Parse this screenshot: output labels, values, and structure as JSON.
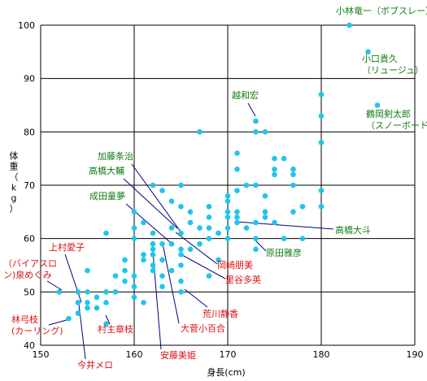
{
  "chart_data": {
    "type": "scatter",
    "title": "",
    "xlabel": "身長(cm)",
    "ylabel": "体重（kg）",
    "xlim": [
      150,
      190
    ],
    "ylim": [
      40,
      100
    ],
    "x_ticks": [
      150,
      160,
      170,
      180,
      190
    ],
    "y_ticks": [
      40,
      50,
      60,
      70,
      80,
      90,
      100
    ],
    "grid": true,
    "point_color": "#1fc5ec",
    "green_label_color": "#127c12",
    "red_label_color": "#dd1111",
    "points": [
      {
        "x": 183,
        "y": 100
      },
      {
        "x": 185,
        "y": 95
      },
      {
        "x": 186,
        "y": 85
      },
      {
        "x": 173,
        "y": 82
      },
      {
        "x": 173,
        "y": 80
      },
      {
        "x": 174,
        "y": 80
      },
      {
        "x": 167,
        "y": 80
      },
      {
        "x": 180,
        "y": 87
      },
      {
        "x": 180,
        "y": 83
      },
      {
        "x": 180,
        "y": 78
      },
      {
        "x": 180,
        "y": 69
      },
      {
        "x": 180,
        "y": 66
      },
      {
        "x": 171,
        "y": 76
      },
      {
        "x": 171,
        "y": 73
      },
      {
        "x": 171,
        "y": 69
      },
      {
        "x": 175,
        "y": 75
      },
      {
        "x": 175,
        "y": 73
      },
      {
        "x": 175,
        "y": 72
      },
      {
        "x": 176,
        "y": 75
      },
      {
        "x": 177,
        "y": 73
      },
      {
        "x": 177,
        "y": 72
      },
      {
        "x": 177,
        "y": 70
      },
      {
        "x": 173,
        "y": 70
      },
      {
        "x": 172,
        "y": 70
      },
      {
        "x": 174,
        "y": 68
      },
      {
        "x": 170,
        "y": 68
      },
      {
        "x": 170,
        "y": 67
      },
      {
        "x": 170,
        "y": 65
      },
      {
        "x": 170,
        "y": 64
      },
      {
        "x": 170,
        "y": 62
      },
      {
        "x": 170,
        "y": 60
      },
      {
        "x": 168,
        "y": 66
      },
      {
        "x": 168,
        "y": 64
      },
      {
        "x": 168,
        "y": 62
      },
      {
        "x": 169,
        "y": 61
      },
      {
        "x": 168,
        "y": 60
      },
      {
        "x": 171,
        "y": 65
      },
      {
        "x": 171,
        "y": 64
      },
      {
        "x": 171,
        "y": 63
      },
      {
        "x": 173,
        "y": 63
      },
      {
        "x": 174,
        "y": 64
      },
      {
        "x": 174,
        "y": 65
      },
      {
        "x": 175,
        "y": 63
      },
      {
        "x": 176,
        "y": 60
      },
      {
        "x": 178,
        "y": 60
      },
      {
        "x": 177,
        "y": 65
      },
      {
        "x": 178,
        "y": 66
      },
      {
        "x": 173,
        "y": 60
      },
      {
        "x": 172,
        "y": 62
      },
      {
        "x": 173,
        "y": 58
      },
      {
        "x": 166,
        "y": 65
      },
      {
        "x": 166,
        "y": 63
      },
      {
        "x": 165,
        "y": 61
      },
      {
        "x": 165,
        "y": 58
      },
      {
        "x": 164,
        "y": 59
      },
      {
        "x": 164,
        "y": 62
      },
      {
        "x": 167,
        "y": 62
      },
      {
        "x": 167,
        "y": 59
      },
      {
        "x": 166,
        "y": 58
      },
      {
        "x": 169,
        "y": 56
      },
      {
        "x": 168,
        "y": 53
      },
      {
        "x": 162,
        "y": 70
      },
      {
        "x": 163,
        "y": 69
      },
      {
        "x": 165,
        "y": 70
      },
      {
        "x": 164,
        "y": 67
      },
      {
        "x": 165,
        "y": 66
      },
      {
        "x": 160,
        "y": 65
      },
      {
        "x": 161,
        "y": 63
      },
      {
        "x": 160,
        "y": 62
      },
      {
        "x": 162,
        "y": 61
      },
      {
        "x": 160,
        "y": 60
      },
      {
        "x": 161,
        "y": 57
      },
      {
        "x": 161,
        "y": 56
      },
      {
        "x": 162,
        "y": 59
      },
      {
        "x": 162,
        "y": 58
      },
      {
        "x": 163,
        "y": 59
      },
      {
        "x": 162,
        "y": 57
      },
      {
        "x": 163,
        "y": 56
      },
      {
        "x": 162,
        "y": 55
      },
      {
        "x": 162,
        "y": 54
      },
      {
        "x": 163,
        "y": 53
      },
      {
        "x": 164,
        "y": 54
      },
      {
        "x": 165,
        "y": 55
      },
      {
        "x": 165,
        "y": 57
      },
      {
        "x": 163,
        "y": 51
      },
      {
        "x": 165,
        "y": 52
      },
      {
        "x": 165,
        "y": 50
      },
      {
        "x": 160,
        "y": 53
      },
      {
        "x": 159,
        "y": 56
      },
      {
        "x": 159,
        "y": 54
      },
      {
        "x": 159,
        "y": 52
      },
      {
        "x": 160,
        "y": 51
      },
      {
        "x": 160,
        "y": 49
      },
      {
        "x": 161,
        "y": 48
      },
      {
        "x": 158,
        "y": 53
      },
      {
        "x": 158,
        "y": 50
      },
      {
        "x": 157,
        "y": 48
      },
      {
        "x": 157,
        "y": 61
      },
      {
        "x": 157,
        "y": 50
      },
      {
        "x": 156,
        "y": 49
      },
      {
        "x": 156,
        "y": 47
      },
      {
        "x": 155,
        "y": 50
      },
      {
        "x": 155,
        "y": 48
      },
      {
        "x": 155,
        "y": 47
      },
      {
        "x": 155,
        "y": 54
      },
      {
        "x": 154,
        "y": 50
      },
      {
        "x": 154,
        "y": 48
      },
      {
        "x": 154,
        "y": 46
      },
      {
        "x": 152,
        "y": 50
      },
      {
        "x": 153,
        "y": 45
      },
      {
        "x": 157,
        "y": 44
      }
    ],
    "annotations": [
      {
        "text": [
          "小林竜一（ボブスレー）"
        ],
        "color": "green"
      },
      {
        "text": [
          "小口貴久",
          "（リュージュ）"
        ],
        "color": "green"
      },
      {
        "text": [
          "鶴岡剣太郎",
          "（スノーボード）"
        ],
        "color": "green"
      },
      {
        "text": [
          "越和宏"
        ],
        "color": "green"
      },
      {
        "text": [
          "加藤条治"
        ],
        "color": "green"
      },
      {
        "text": [
          "高橋大輔"
        ],
        "color": "green"
      },
      {
        "text": [
          "成田童夢"
        ],
        "color": "green"
      },
      {
        "text": [
          "高橋大斗"
        ],
        "color": "green"
      },
      {
        "text": [
          "原田雅彦"
        ],
        "color": "green"
      },
      {
        "text": [
          "岡崎朋美"
        ],
        "color": "red"
      },
      {
        "text": [
          "里谷多英"
        ],
        "color": "red"
      },
      {
        "text": [
          "荒川静香"
        ],
        "color": "red"
      },
      {
        "text": [
          "大菅小百合"
        ],
        "color": "red"
      },
      {
        "text": [
          "安藤美姫"
        ],
        "color": "red"
      },
      {
        "text": [
          "村主章枝"
        ],
        "color": "red"
      },
      {
        "text": [
          "今井メロ"
        ],
        "color": "red"
      },
      {
        "text": [
          "上村愛子"
        ],
        "color": "red"
      },
      {
        "text": [
          "（バイアスロ",
          "ン)泉めぐみ"
        ],
        "color": "red"
      },
      {
        "text": [
          "林弓枝",
          "(カーリング)"
        ],
        "color": "red"
      }
    ]
  }
}
